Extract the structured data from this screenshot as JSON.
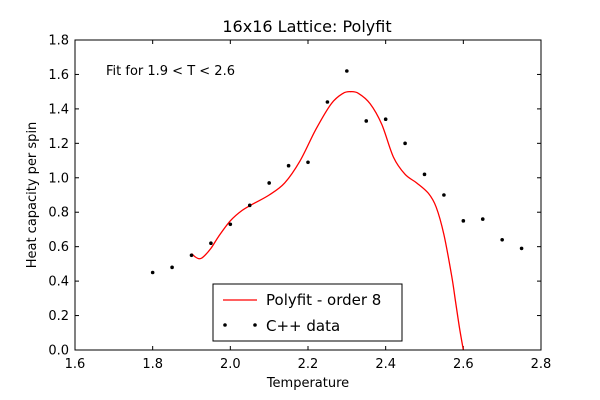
{
  "chart_data": {
    "type": "line",
    "title": "16x16 Lattice: Polyfit",
    "xlabel": "Temperature",
    "ylabel": "Heat capacity per spin",
    "xlim": [
      1.6,
      2.8
    ],
    "ylim": [
      0.0,
      1.8
    ],
    "xticks": [
      1.6,
      1.8,
      2.0,
      2.2,
      2.4,
      2.6,
      2.8
    ],
    "xtick_labels": [
      "1.6",
      "1.8",
      "2.0",
      "2.2",
      "2.4",
      "2.6",
      "2.8"
    ],
    "yticks": [
      0.0,
      0.2,
      0.4,
      0.6,
      0.8,
      1.0,
      1.2,
      1.4,
      1.6,
      1.8
    ],
    "ytick_labels": [
      "0.0",
      "0.2",
      "0.4",
      "0.6",
      "0.8",
      "1.0",
      "1.2",
      "1.4",
      "1.6",
      "1.8"
    ],
    "grid": false,
    "annotation": "Fit for 1.9 < T < 2.6",
    "legend_position": "bottom-center",
    "series": [
      {
        "name": "Polyfit - order 8",
        "kind": "line",
        "color": "#ff0000",
        "x": [
          1.9,
          1.91,
          1.92,
          1.93,
          1.95,
          1.97,
          2.0,
          2.03,
          2.06,
          2.1,
          2.14,
          2.18,
          2.22,
          2.26,
          2.29,
          2.31,
          2.33,
          2.36,
          2.39,
          2.42,
          2.45,
          2.48,
          2.51,
          2.53,
          2.55,
          2.57,
          2.58,
          2.59,
          2.6
        ],
        "y": [
          0.56,
          0.54,
          0.53,
          0.54,
          0.59,
          0.66,
          0.75,
          0.81,
          0.85,
          0.9,
          0.97,
          1.1,
          1.28,
          1.43,
          1.49,
          1.5,
          1.49,
          1.43,
          1.31,
          1.12,
          1.02,
          0.97,
          0.91,
          0.83,
          0.67,
          0.43,
          0.28,
          0.13,
          0.0
        ]
      },
      {
        "name": "C++ data",
        "kind": "scatter",
        "color": "#000000",
        "x": [
          1.8,
          1.85,
          1.9,
          1.95,
          2.0,
          2.05,
          2.1,
          2.15,
          2.2,
          2.25,
          2.3,
          2.35,
          2.4,
          2.45,
          2.5,
          2.55,
          2.6,
          2.65,
          2.7,
          2.75
        ],
        "y": [
          0.45,
          0.48,
          0.55,
          0.62,
          0.73,
          0.84,
          0.97,
          1.07,
          1.09,
          1.44,
          1.62,
          1.33,
          1.34,
          1.2,
          1.02,
          0.9,
          0.75,
          0.76,
          0.64,
          0.59
        ]
      }
    ]
  }
}
